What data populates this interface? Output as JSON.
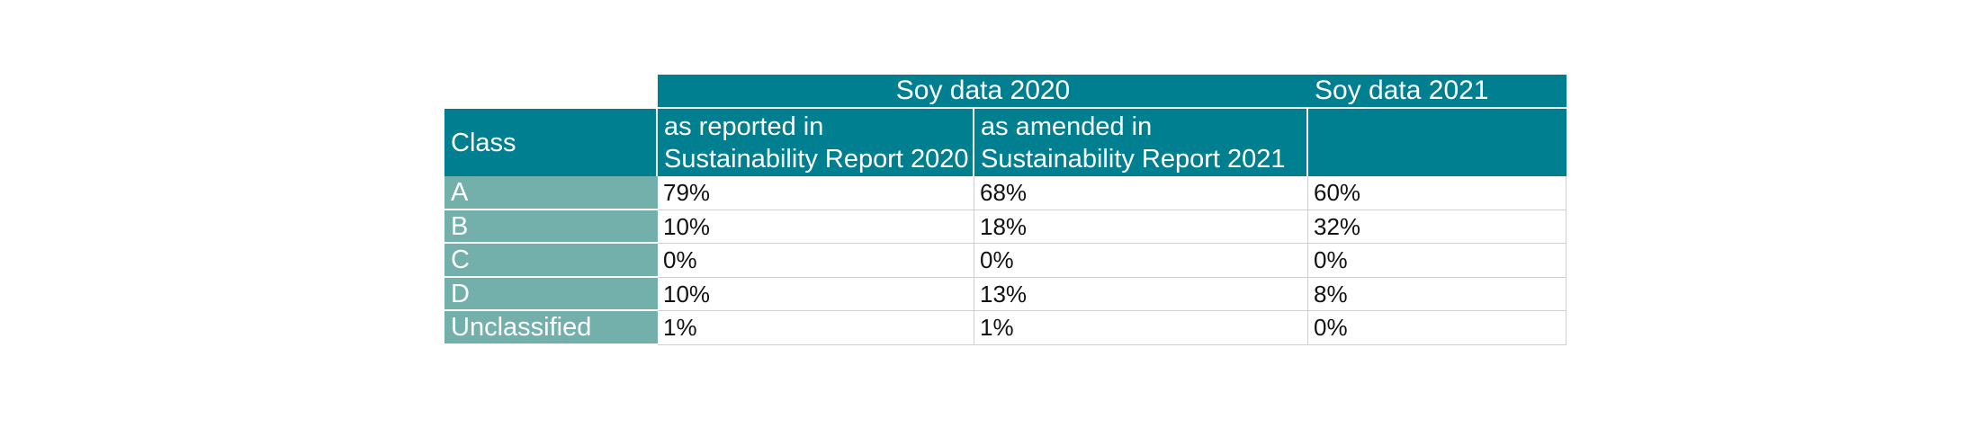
{
  "table": {
    "group_headers": {
      "soy_2020": "Soy data 2020",
      "soy_2021": "Soy data 2021"
    },
    "sub_headers": {
      "class": "Class",
      "reported": "as reported in Sustainability Report 2020",
      "amended": "as amended in Sustainability Report 2021",
      "soy_2021": ""
    },
    "rows": [
      {
        "class": "A",
        "reported": "79%",
        "amended": "68%",
        "soy_2021": "60%"
      },
      {
        "class": "B",
        "reported": "10%",
        "amended": "18%",
        "soy_2021": "32%"
      },
      {
        "class": "C",
        "reported": "0%",
        "amended": "0%",
        "soy_2021": "0%"
      },
      {
        "class": "D",
        "reported": "10%",
        "amended": "13%",
        "soy_2021": "8%"
      },
      {
        "class": "Unclassified",
        "reported": "1%",
        "amended": "1%",
        "soy_2021": "0%"
      }
    ]
  },
  "colors": {
    "header_teal": "#007f91",
    "label_teal": "#73afab",
    "grid": "#cfcfcf"
  }
}
